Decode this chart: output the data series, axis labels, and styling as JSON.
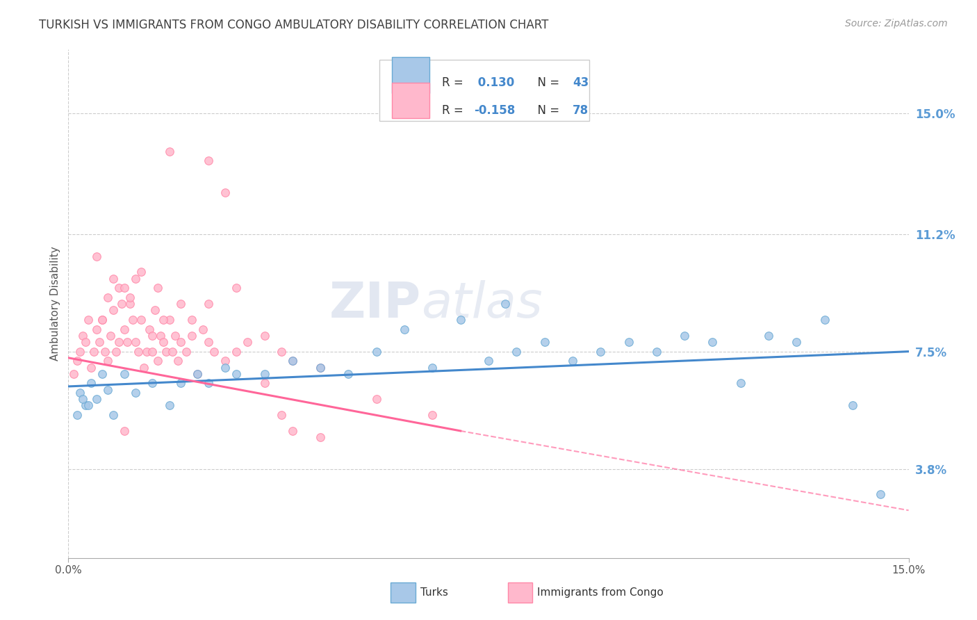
{
  "title": "TURKISH VS IMMIGRANTS FROM CONGO AMBULATORY DISABILITY CORRELATION CHART",
  "source": "Source: ZipAtlas.com",
  "ylabel": "Ambulatory Disability",
  "y_tick_values": [
    3.8,
    7.5,
    11.2,
    15.0
  ],
  "x_range": [
    0.0,
    15.0
  ],
  "y_range": [
    1.0,
    17.0
  ],
  "legend_label1": "Turks",
  "legend_label2": "Immigrants from Congo",
  "R1": "0.130",
  "N1": "43",
  "R2": "-0.158",
  "N2": "78",
  "color_blue_fill": "#a8c8e8",
  "color_blue_edge": "#6aaad4",
  "color_pink_fill": "#ffb8cc",
  "color_pink_edge": "#ff88a8",
  "color_blue_line": "#4488cc",
  "color_pink_line": "#ff6699",
  "color_title": "#404040",
  "color_axis_right": "#5b9bd5",
  "color_source": "#999999",
  "color_grid": "#cccccc",
  "color_legend_text_dark": "#333333",
  "color_legend_text_blue": "#4488cc",
  "turks_x": [
    0.2,
    0.3,
    0.4,
    0.5,
    0.6,
    0.7,
    0.8,
    1.0,
    1.2,
    1.5,
    1.8,
    2.0,
    2.3,
    2.5,
    2.8,
    3.0,
    3.5,
    4.0,
    4.5,
    5.0,
    5.5,
    6.0,
    6.5,
    7.0,
    7.5,
    8.0,
    8.5,
    9.0,
    9.5,
    10.0,
    10.5,
    11.0,
    11.5,
    12.0,
    12.5,
    13.0,
    13.5,
    14.0,
    14.5,
    0.15,
    0.25,
    0.35,
    7.8
  ],
  "turks_y": [
    6.2,
    5.8,
    6.5,
    6.0,
    6.8,
    6.3,
    5.5,
    6.8,
    6.2,
    6.5,
    5.8,
    6.5,
    6.8,
    6.5,
    7.0,
    6.8,
    6.8,
    7.2,
    7.0,
    6.8,
    7.5,
    8.2,
    7.0,
    8.5,
    7.2,
    7.5,
    7.8,
    7.2,
    7.5,
    7.8,
    7.5,
    8.0,
    7.8,
    6.5,
    8.0,
    7.8,
    8.5,
    5.8,
    3.0,
    5.5,
    6.0,
    5.8,
    9.0
  ],
  "congo_x": [
    0.1,
    0.15,
    0.2,
    0.25,
    0.3,
    0.35,
    0.4,
    0.45,
    0.5,
    0.55,
    0.6,
    0.65,
    0.7,
    0.75,
    0.8,
    0.85,
    0.9,
    0.95,
    1.0,
    1.05,
    1.1,
    1.15,
    1.2,
    1.25,
    1.3,
    1.35,
    1.4,
    1.45,
    1.5,
    1.55,
    1.6,
    1.65,
    1.7,
    1.75,
    1.8,
    1.85,
    1.9,
    1.95,
    2.0,
    2.1,
    2.2,
    2.3,
    2.4,
    2.5,
    2.6,
    2.8,
    3.0,
    3.2,
    3.5,
    3.8,
    4.0,
    4.5,
    5.5,
    6.5,
    1.5,
    1.6,
    1.7,
    2.0,
    0.6,
    0.7,
    0.5,
    0.8,
    0.9,
    1.0,
    1.1,
    1.2,
    1.3,
    2.2,
    2.5,
    3.0,
    1.8,
    2.5,
    2.8,
    3.5,
    3.8,
    4.5,
    1.0,
    4.0
  ],
  "congo_y": [
    6.8,
    7.2,
    7.5,
    8.0,
    7.8,
    8.5,
    7.0,
    7.5,
    8.2,
    7.8,
    8.5,
    7.5,
    7.2,
    8.0,
    8.8,
    7.5,
    7.8,
    9.0,
    8.2,
    7.8,
    9.0,
    8.5,
    7.8,
    7.5,
    8.5,
    7.0,
    7.5,
    8.2,
    7.5,
    8.8,
    7.2,
    8.0,
    7.8,
    7.5,
    8.5,
    7.5,
    8.0,
    7.2,
    7.8,
    7.5,
    8.0,
    6.8,
    8.2,
    7.8,
    7.5,
    7.2,
    7.5,
    7.8,
    8.0,
    7.5,
    7.2,
    7.0,
    6.0,
    5.5,
    8.0,
    9.5,
    8.5,
    9.0,
    8.5,
    9.2,
    10.5,
    9.8,
    9.5,
    9.5,
    9.2,
    9.8,
    10.0,
    8.5,
    9.0,
    9.5,
    13.8,
    13.5,
    12.5,
    6.5,
    5.5,
    4.8,
    5.0,
    5.0
  ]
}
